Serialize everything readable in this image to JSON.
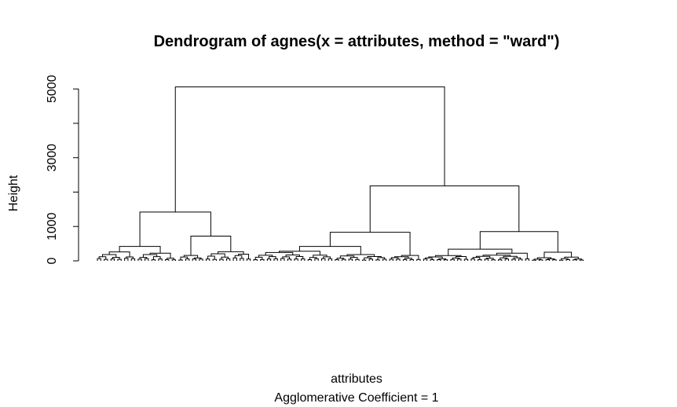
{
  "chart_data": {
    "type": "dendrogram",
    "title": "Dendrogram of  agnes(x = attributes, method = \"ward\")",
    "xlabel": "attributes",
    "sub": "Agglomerative Coefficient =  1",
    "ylabel": "Height",
    "ylim": [
      0,
      5200
    ],
    "yticks": [
      0,
      1000,
      2000,
      3000,
      4000,
      5000
    ],
    "ytick_labels": [
      "0",
      "1000",
      "3000",
      "5000"
    ],
    "leaf_count": 154,
    "merges": [
      {
        "name": "root",
        "height": 5060
      },
      {
        "name": "left-cluster",
        "height": 1420
      },
      {
        "name": "right-cluster",
        "height": 2180
      },
      {
        "name": "left-a",
        "height": 420
      },
      {
        "name": "left-b",
        "height": 720
      },
      {
        "name": "right-a",
        "height": 830
      },
      {
        "name": "right-b",
        "height": 850
      },
      {
        "name": "right-a1",
        "height": 420
      },
      {
        "name": "right-b1",
        "height": 340
      },
      {
        "name": "right-b2",
        "height": 250
      }
    ]
  }
}
